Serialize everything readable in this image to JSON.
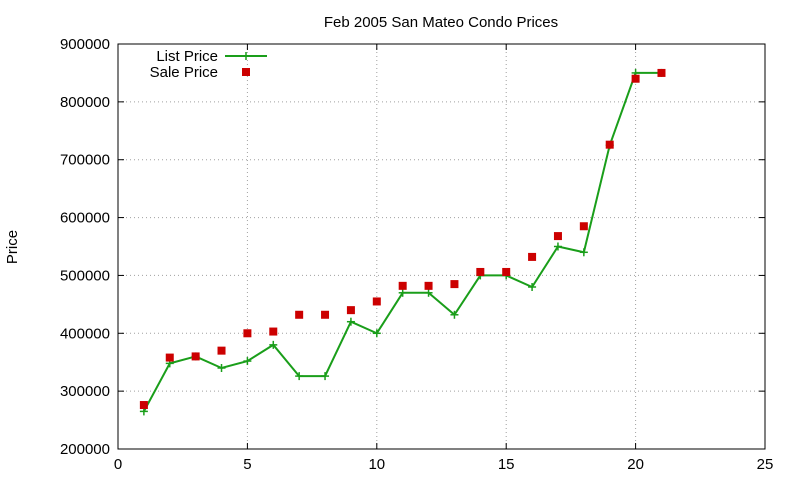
{
  "chart_data": {
    "type": "line",
    "title": "Feb 2005 San Mateo Condo Prices",
    "xlabel": "",
    "ylabel": "Price",
    "xlim": [
      0,
      25
    ],
    "ylim": [
      200000,
      900000
    ],
    "x_ticks": [
      0,
      5,
      10,
      15,
      20,
      25
    ],
    "y_ticks": [
      200000,
      300000,
      400000,
      500000,
      600000,
      700000,
      800000,
      900000
    ],
    "grid": true,
    "legend_position": "top-left",
    "series": [
      {
        "name": "List Price",
        "style": "line-with-plus-markers",
        "color": "#1a9e1a",
        "x": [
          1,
          2,
          3,
          4,
          5,
          6,
          7,
          8,
          9,
          10,
          11,
          12,
          13,
          14,
          15,
          16,
          17,
          18,
          19,
          20,
          21
        ],
        "y": [
          265000,
          348000,
          360000,
          340000,
          352000,
          380000,
          326000,
          326000,
          420000,
          400000,
          470000,
          470000,
          432000,
          500000,
          500000,
          480000,
          550000,
          540000,
          725000,
          850000,
          850000
        ]
      },
      {
        "name": "Sale Price",
        "style": "square-markers",
        "color": "#cc0000",
        "x": [
          1,
          2,
          3,
          4,
          5,
          6,
          7,
          8,
          9,
          10,
          11,
          12,
          13,
          14,
          15,
          16,
          17,
          18,
          19,
          20,
          21
        ],
        "y": [
          276000,
          358000,
          360000,
          370000,
          400000,
          403000,
          432000,
          432000,
          440000,
          455000,
          482000,
          482000,
          485000,
          506000,
          506000,
          532000,
          568000,
          585000,
          726000,
          840000,
          850000
        ]
      }
    ]
  }
}
